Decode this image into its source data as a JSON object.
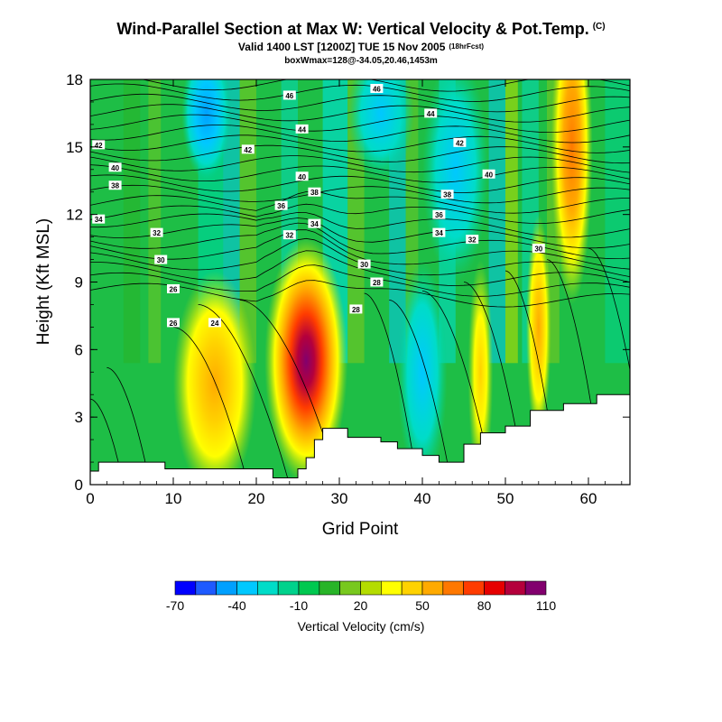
{
  "title": "Wind-Parallel Section at Max W: Vertical Velocity & Pot.Temp.",
  "title_mark": "(C)",
  "subtitle": "Valid 1400 LST [1200Z] TUE 15 Nov 2005",
  "subtitle_note": "(18hrFcst)",
  "info_line": "boxWmax=128@-34.05,20.46,1453m",
  "chart_data": {
    "type": "heatmap",
    "xlabel": "Grid Point",
    "ylabel": "Height (Kft MSL)",
    "xlim": [
      0,
      65
    ],
    "ylim": [
      0,
      18
    ],
    "x_ticks": [
      0,
      10,
      20,
      30,
      40,
      50,
      60
    ],
    "y_ticks": [
      0,
      3,
      6,
      9,
      12,
      15,
      18
    ],
    "colorbar": {
      "label": "Vertical Velocity (cm/s)",
      "tick_labels": [
        "-70",
        "-40",
        "-10",
        "20",
        "50",
        "80",
        "110"
      ],
      "colors": [
        "#0000ff",
        "#1e5aff",
        "#00a0ff",
        "#00c8ff",
        "#00dcc8",
        "#00d28c",
        "#00c850",
        "#28b428",
        "#78c81e",
        "#b4dc00",
        "#ffff00",
        "#ffd200",
        "#ffaa00",
        "#ff7800",
        "#ff3c00",
        "#e60000",
        "#b4003c",
        "#82006e"
      ]
    },
    "terrain": [
      [
        0,
        0.6
      ],
      [
        1,
        0.6
      ],
      [
        1,
        1
      ],
      [
        9,
        1
      ],
      [
        9,
        0.7
      ],
      [
        22,
        0.7
      ],
      [
        22,
        0.3
      ],
      [
        25,
        0.3
      ],
      [
        25,
        0.7
      ],
      [
        26,
        0.7
      ],
      [
        26,
        1.2
      ],
      [
        27,
        1.2
      ],
      [
        27,
        2
      ],
      [
        28,
        2
      ],
      [
        28,
        2.5
      ],
      [
        31,
        2.5
      ],
      [
        31,
        2.1
      ],
      [
        35,
        2.1
      ],
      [
        35,
        1.9
      ],
      [
        37,
        1.9
      ],
      [
        37,
        1.6
      ],
      [
        40,
        1.6
      ],
      [
        40,
        1.3
      ],
      [
        42,
        1.3
      ],
      [
        42,
        1
      ],
      [
        45,
        1
      ],
      [
        45,
        1.8
      ],
      [
        47,
        1.8
      ],
      [
        47,
        2.3
      ],
      [
        50,
        2.3
      ],
      [
        50,
        2.6
      ],
      [
        53,
        2.6
      ],
      [
        53,
        3.3
      ],
      [
        57,
        3.3
      ],
      [
        57,
        3.6
      ],
      [
        61,
        3.6
      ],
      [
        61,
        4
      ],
      [
        65,
        4
      ]
    ],
    "velocity_blobs": [
      {
        "x": 26,
        "y": 5.5,
        "w": 5,
        "h": 5.5,
        "value": 128
      },
      {
        "x": 15,
        "y": 4.5,
        "w": 5,
        "h": 5,
        "value": 40
      },
      {
        "x": 58,
        "y": 15,
        "w": 2.5,
        "h": 7,
        "value": 70
      },
      {
        "x": 54,
        "y": 7,
        "w": 1.5,
        "h": 5,
        "value": 35
      },
      {
        "x": 47,
        "y": 5,
        "w": 1.5,
        "h": 5,
        "value": 20
      },
      {
        "x": 35,
        "y": 16.5,
        "w": 4,
        "h": 3,
        "value": -20
      },
      {
        "x": 14,
        "y": 16.5,
        "w": 3,
        "h": 3,
        "value": -35
      },
      {
        "x": 40,
        "y": 5,
        "w": 3,
        "h": 5,
        "value": -15
      },
      {
        "x": 44,
        "y": 14,
        "w": 4,
        "h": 5,
        "value": -12
      }
    ],
    "theta_contours": [
      {
        "level": "24",
        "label_at": [
          15,
          7.2
        ]
      },
      {
        "level": "26",
        "label_at": [
          10,
          8.7
        ]
      },
      {
        "level": "28",
        "label_at": [
          33,
          7.8
        ]
      },
      {
        "level": "30",
        "label_at": [
          8.5,
          10
        ]
      },
      {
        "level": "32",
        "label_at": [
          24,
          11.1
        ]
      },
      {
        "level": "34",
        "label_at": [
          27,
          11.6
        ]
      },
      {
        "level": "36",
        "label_at": [
          23,
          12.4
        ]
      },
      {
        "level": "38",
        "label_at": [
          27,
          13
        ]
      },
      {
        "level": "40",
        "label_at": [
          2.5,
          14.1
        ]
      },
      {
        "level": "42",
        "label_at": [
          19,
          14.9
        ]
      },
      {
        "level": "44",
        "label_at": [
          25.5,
          15.8
        ]
      },
      {
        "level": "46",
        "label_at": [
          24,
          17.3
        ]
      }
    ],
    "contour_labels": [
      {
        "text": "46",
        "x": 24,
        "y": 17.3
      },
      {
        "text": "46",
        "x": 34.5,
        "y": 17.6
      },
      {
        "text": "44",
        "x": 25.5,
        "y": 15.8
      },
      {
        "text": "44",
        "x": 41,
        "y": 16.5
      },
      {
        "text": "42",
        "x": 1,
        "y": 15.1
      },
      {
        "text": "42",
        "x": 19,
        "y": 14.9
      },
      {
        "text": "42",
        "x": 44.5,
        "y": 15.2
      },
      {
        "text": "40",
        "x": 3,
        "y": 14.1
      },
      {
        "text": "40",
        "x": 25.5,
        "y": 13.7
      },
      {
        "text": "40",
        "x": 48,
        "y": 13.8
      },
      {
        "text": "38",
        "x": 3,
        "y": 13.3
      },
      {
        "text": "38",
        "x": 27,
        "y": 13
      },
      {
        "text": "38",
        "x": 43,
        "y": 12.9
      },
      {
        "text": "36",
        "x": 23,
        "y": 12.4
      },
      {
        "text": "36",
        "x": 42,
        "y": 12
      },
      {
        "text": "34",
        "x": 1,
        "y": 11.8
      },
      {
        "text": "34",
        "x": 27,
        "y": 11.6
      },
      {
        "text": "34",
        "x": 42,
        "y": 11.2
      },
      {
        "text": "32",
        "x": 8,
        "y": 11.2
      },
      {
        "text": "32",
        "x": 24,
        "y": 11.1
      },
      {
        "text": "32",
        "x": 46,
        "y": 10.9
      },
      {
        "text": "30",
        "x": 8.5,
        "y": 10
      },
      {
        "text": "30",
        "x": 33,
        "y": 9.8
      },
      {
        "text": "30",
        "x": 54,
        "y": 10.5
      },
      {
        "text": "28",
        "x": 34.5,
        "y": 9
      },
      {
        "text": "28",
        "x": 32,
        "y": 7.8
      },
      {
        "text": "26",
        "x": 10,
        "y": 8.7
      },
      {
        "text": "26",
        "x": 10,
        "y": 7.2
      },
      {
        "text": "24",
        "x": 15,
        "y": 7.2
      }
    ]
  }
}
